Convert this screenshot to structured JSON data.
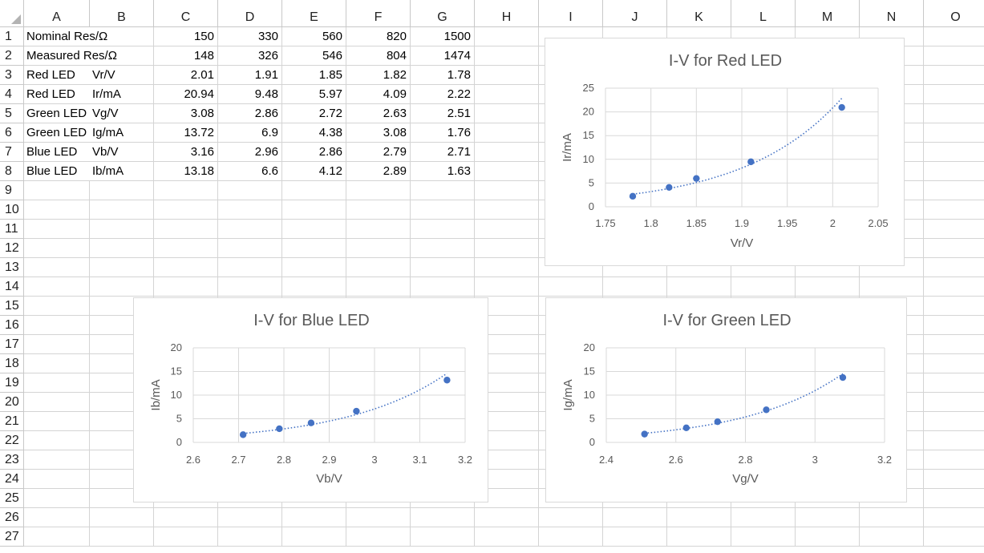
{
  "columns": [
    "A",
    "B",
    "C",
    "D",
    "E",
    "F",
    "G",
    "H",
    "I",
    "J",
    "K",
    "L",
    "M",
    "N",
    "O"
  ],
  "rows": [
    "1",
    "2",
    "3",
    "4",
    "5",
    "6",
    "7",
    "8",
    "9",
    "10",
    "11",
    "12",
    "13",
    "14",
    "15",
    "16",
    "17",
    "18",
    "19",
    "20",
    "21",
    "22",
    "23",
    "24",
    "25",
    "26",
    "27"
  ],
  "table": [
    {
      "a": "Nominal Res/Ω",
      "b": "",
      "c": "150",
      "d": "330",
      "e": "560",
      "f": "820",
      "g": "1500"
    },
    {
      "a": "Measured Res/Ω",
      "b": "",
      "c": "148",
      "d": "326",
      "e": "546",
      "f": "804",
      "g": "1474"
    },
    {
      "a": "Red LED",
      "b": "Vr/V",
      "c": "2.01",
      "d": "1.91",
      "e": "1.85",
      "f": "1.82",
      "g": "1.78"
    },
    {
      "a": "Red LED",
      "b": "Ir/mA",
      "c": "20.94",
      "d": "9.48",
      "e": "5.97",
      "f": "4.09",
      "g": "2.22"
    },
    {
      "a": "Green LED",
      "b": "Vg/V",
      "c": "3.08",
      "d": "2.86",
      "e": "2.72",
      "f": "2.63",
      "g": "2.51"
    },
    {
      "a": "Green LED",
      "b": "Ig/mA",
      "c": "13.72",
      "d": "6.9",
      "e": "4.38",
      "f": "3.08",
      "g": "1.76"
    },
    {
      "a": "Blue LED",
      "b": "Vb/V",
      "c": "3.16",
      "d": "2.96",
      "e": "2.86",
      "f": "2.79",
      "g": "2.71"
    },
    {
      "a": "Blue LED",
      "b": "Ib/mA",
      "c": "13.18",
      "d": "6.6",
      "e": "4.12",
      "f": "2.89",
      "g": "1.63"
    }
  ],
  "colors": {
    "marker": "#4472c4",
    "trend": "#4472c4",
    "grid": "#d9d9d9",
    "text": "#595959"
  },
  "chart_data": [
    {
      "id": "red",
      "type": "scatter",
      "title": "I-V for Red LED",
      "xlabel": "Vr/V",
      "ylabel": "Ir/mA",
      "xlim": [
        1.75,
        2.05
      ],
      "ylim": [
        0,
        25
      ],
      "xticks": [
        "1.75",
        "1.8",
        "1.85",
        "1.9",
        "1.95",
        "2",
        "2.05"
      ],
      "yticks": [
        "0",
        "5",
        "10",
        "15",
        "20",
        "25"
      ],
      "x": [
        2.01,
        1.91,
        1.85,
        1.82,
        1.78
      ],
      "y": [
        20.94,
        9.48,
        5.97,
        4.09,
        2.22
      ],
      "trendline": "exponential dotted"
    },
    {
      "id": "blue",
      "type": "scatter",
      "title": "I-V for Blue LED",
      "xlabel": "Vb/V",
      "ylabel": "Ib/mA",
      "xlim": [
        2.6,
        3.2
      ],
      "ylim": [
        0,
        20
      ],
      "xticks": [
        "2.6",
        "2.7",
        "2.8",
        "2.9",
        "3",
        "3.1",
        "3.2"
      ],
      "yticks": [
        "0",
        "5",
        "10",
        "15",
        "20"
      ],
      "x": [
        3.16,
        2.96,
        2.86,
        2.79,
        2.71
      ],
      "y": [
        13.18,
        6.6,
        4.12,
        2.89,
        1.63
      ],
      "trendline": "exponential dotted"
    },
    {
      "id": "green",
      "type": "scatter",
      "title": "I-V for Green LED",
      "xlabel": "Vg/V",
      "ylabel": "Ig/mA",
      "xlim": [
        2.4,
        3.2
      ],
      "ylim": [
        0,
        20
      ],
      "xticks": [
        "2.4",
        "2.6",
        "2.8",
        "3",
        "3.2"
      ],
      "yticks": [
        "0",
        "5",
        "10",
        "15",
        "20"
      ],
      "x": [
        3.08,
        2.86,
        2.72,
        2.63,
        2.51
      ],
      "y": [
        13.72,
        6.9,
        4.38,
        3.08,
        1.76
      ],
      "trendline": "exponential dotted"
    }
  ]
}
